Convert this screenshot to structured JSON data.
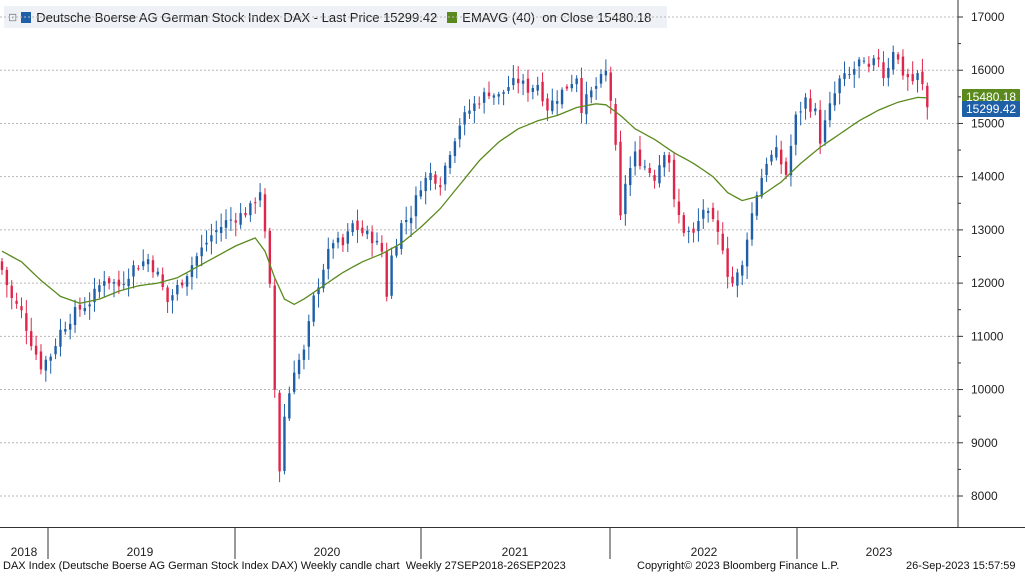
{
  "legend": {
    "series1_label": "Deutsche Boerse AG German Stock Index DAX - Last Price",
    "series1_value": "15299.42",
    "series1_color": "#1f5fa8",
    "series2_label": "EMAVG (40)  on Close",
    "series2_value": "15480.18",
    "series2_color": "#5a8a1e"
  },
  "tags": {
    "last": "15299.42",
    "ema": "15480.18"
  },
  "footer": {
    "left": "DAX Index (Deutsche Boerse AG German Stock Index DAX) Weekly candle chart  Weekly 27SEP2018-26SEP2023",
    "center": "Copyright© 2023 Bloomberg Finance L.P.",
    "right": "26-Sep-2023 15:57:59"
  },
  "chart_data": {
    "type": "candlestick",
    "interval": "weekly",
    "range": "27SEP2018-26SEP2023",
    "ylim": [
      7600,
      17400
    ],
    "yticks": [
      8000,
      9000,
      10000,
      11000,
      12000,
      13000,
      14000,
      15000,
      16000,
      17000
    ],
    "year_labels": [
      "2018",
      "2019",
      "2020",
      "2021",
      "2022",
      "2023"
    ],
    "up_color": "#1f5fa8",
    "down_color": "#e0254b",
    "ema_color": "#5a8a1e",
    "grid": true,
    "close_path": [
      [
        0,
        12250
      ],
      [
        2,
        11700
      ],
      [
        4,
        11450
      ],
      [
        6,
        10900
      ],
      [
        8,
        10450
      ],
      [
        10,
        10650
      ],
      [
        12,
        11100
      ],
      [
        15,
        11450
      ],
      [
        18,
        11650
      ],
      [
        21,
        12100
      ],
      [
        24,
        11950
      ],
      [
        27,
        12300
      ],
      [
        30,
        12450
      ],
      [
        32,
        12150
      ],
      [
        34,
        11650
      ],
      [
        37,
        12050
      ],
      [
        40,
        12500
      ],
      [
        43,
        12900
      ],
      [
        46,
        13150
      ],
      [
        49,
        13280
      ],
      [
        51,
        13400
      ],
      [
        53,
        13750
      ],
      [
        54,
        12900
      ],
      [
        55,
        11900
      ],
      [
        56,
        10000
      ],
      [
        57,
        8500
      ],
      [
        58,
        9500
      ],
      [
        60,
        10400
      ],
      [
        62,
        10700
      ],
      [
        64,
        11700
      ],
      [
        66,
        12300
      ],
      [
        68,
        12800
      ],
      [
        70,
        12700
      ],
      [
        72,
        13100
      ],
      [
        74,
        12950
      ],
      [
        76,
        12850
      ],
      [
        78,
        12600
      ],
      [
        79,
        11800
      ],
      [
        80,
        12500
      ],
      [
        82,
        13100
      ],
      [
        84,
        13300
      ],
      [
        86,
        13850
      ],
      [
        88,
        14050
      ],
      [
        90,
        13900
      ],
      [
        92,
        14500
      ],
      [
        94,
        15000
      ],
      [
        96,
        15250
      ],
      [
        98,
        15450
      ],
      [
        100,
        15600
      ],
      [
        102,
        15500
      ],
      [
        104,
        15700
      ],
      [
        106,
        15800
      ],
      [
        108,
        15650
      ],
      [
        110,
        15750
      ],
      [
        112,
        15300
      ],
      [
        114,
        15500
      ],
      [
        116,
        15700
      ],
      [
        118,
        15900
      ],
      [
        119,
        15300
      ],
      [
        120,
        15450
      ],
      [
        122,
        15700
      ],
      [
        124,
        15950
      ],
      [
        125,
        15450
      ],
      [
        126,
        14500
      ],
      [
        127,
        13200
      ],
      [
        128,
        13900
      ],
      [
        130,
        14400
      ],
      [
        132,
        14200
      ],
      [
        134,
        14000
      ],
      [
        136,
        14500
      ],
      [
        137,
        14300
      ],
      [
        138,
        13500
      ],
      [
        140,
        13000
      ],
      [
        142,
        12900
      ],
      [
        144,
        13400
      ],
      [
        146,
        13100
      ],
      [
        148,
        12700
      ],
      [
        149,
        12200
      ],
      [
        150,
        12000
      ],
      [
        152,
        12300
      ],
      [
        153,
        12900
      ],
      [
        155,
        13700
      ],
      [
        157,
        14300
      ],
      [
        159,
        14450
      ],
      [
        161,
        14050
      ],
      [
        163,
        15100
      ],
      [
        165,
        15450
      ],
      [
        167,
        15200
      ],
      [
        168,
        14700
      ],
      [
        170,
        15300
      ],
      [
        172,
        15800
      ],
      [
        174,
        15900
      ],
      [
        176,
        16150
      ],
      [
        178,
        16000
      ],
      [
        180,
        16250
      ],
      [
        181,
        15900
      ],
      [
        182,
        16100
      ],
      [
        183,
        16400
      ],
      [
        185,
        15950
      ],
      [
        187,
        15800
      ],
      [
        188,
        15900
      ],
      [
        189,
        15700
      ],
      [
        190,
        15300
      ]
    ],
    "ema_path": [
      [
        0,
        12600
      ],
      [
        4,
        12400
      ],
      [
        8,
        12050
      ],
      [
        12,
        11750
      ],
      [
        16,
        11620
      ],
      [
        20,
        11700
      ],
      [
        24,
        11850
      ],
      [
        28,
        11950
      ],
      [
        32,
        12000
      ],
      [
        36,
        12100
      ],
      [
        40,
        12300
      ],
      [
        44,
        12500
      ],
      [
        48,
        12700
      ],
      [
        52,
        12850
      ],
      [
        54,
        12600
      ],
      [
        56,
        12100
      ],
      [
        58,
        11700
      ],
      [
        60,
        11600
      ],
      [
        62,
        11700
      ],
      [
        66,
        11950
      ],
      [
        70,
        12200
      ],
      [
        74,
        12400
      ],
      [
        78,
        12550
      ],
      [
        82,
        12750
      ],
      [
        86,
        13050
      ],
      [
        90,
        13400
      ],
      [
        94,
        13850
      ],
      [
        98,
        14300
      ],
      [
        102,
        14650
      ],
      [
        106,
        14900
      ],
      [
        110,
        15050
      ],
      [
        114,
        15150
      ],
      [
        118,
        15300
      ],
      [
        122,
        15370
      ],
      [
        124,
        15350
      ],
      [
        127,
        15150
      ],
      [
        130,
        14900
      ],
      [
        134,
        14700
      ],
      [
        138,
        14450
      ],
      [
        142,
        14250
      ],
      [
        146,
        14000
      ],
      [
        149,
        13700
      ],
      [
        152,
        13550
      ],
      [
        156,
        13650
      ],
      [
        160,
        13900
      ],
      [
        164,
        14250
      ],
      [
        168,
        14550
      ],
      [
        172,
        14800
      ],
      [
        176,
        15050
      ],
      [
        180,
        15250
      ],
      [
        184,
        15400
      ],
      [
        188,
        15490
      ],
      [
        190,
        15480
      ]
    ]
  }
}
